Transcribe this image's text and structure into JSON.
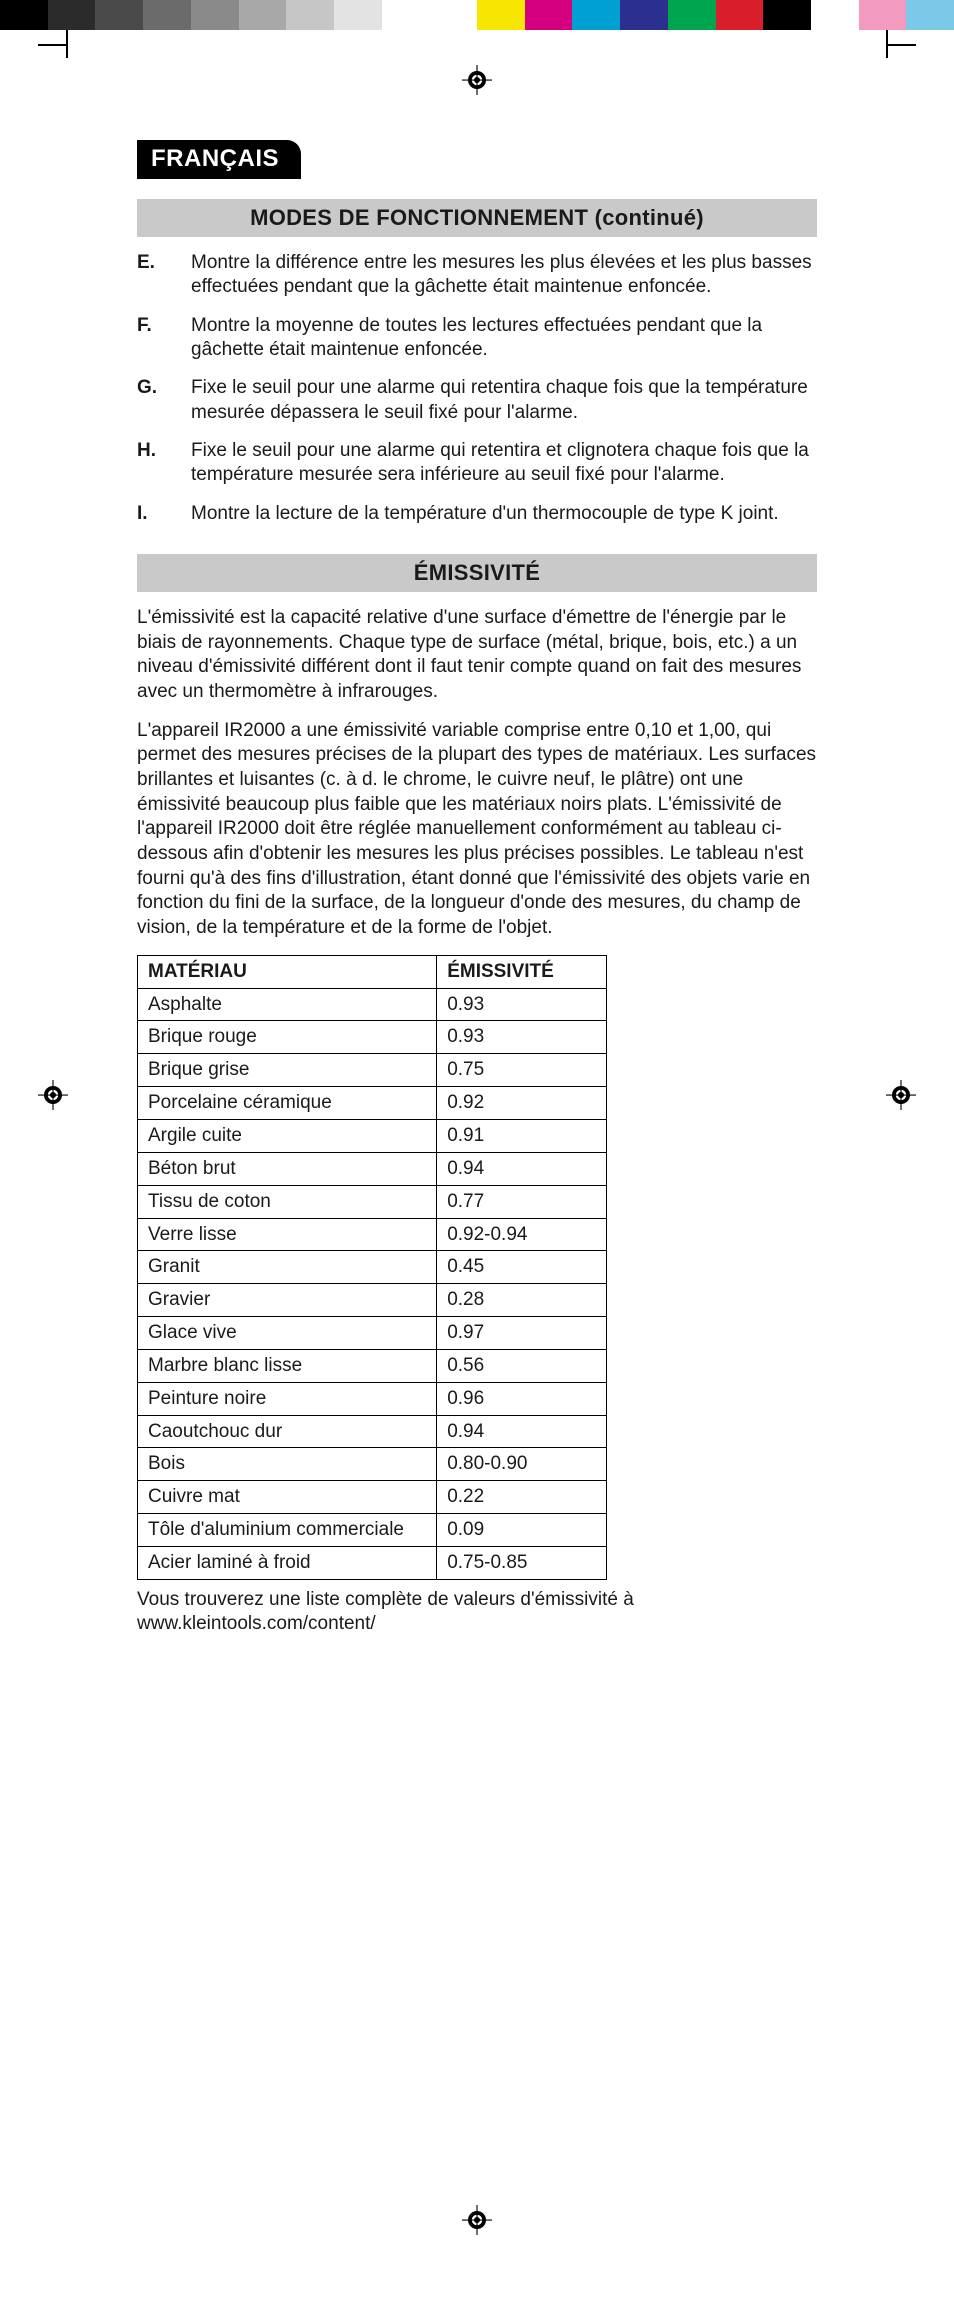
{
  "colorbar_colors": [
    "#000000",
    "#2b2b2b",
    "#4a4a4a",
    "#6b6b6b",
    "#8a8a8a",
    "#a8a8a8",
    "#c6c6c6",
    "#e3e3e3",
    "#ffffff",
    "#ffffff",
    "#f7e600",
    "#d4007f",
    "#00a0d2",
    "#2b2f8f",
    "#00a54f",
    "#d81e2a",
    "#000000",
    "#ffffff",
    "#f29ac0",
    "#7cc8e8"
  ],
  "lang_tab": "FRANÇAIS",
  "section_modes_title": "MODES DE FONCTIONNEMENT (continué)",
  "modes": [
    {
      "letter": "E.",
      "text": "Montre la différence entre les mesures les plus élevées et les plus basses effectuées pendant que la gâchette était maintenue enfoncée."
    },
    {
      "letter": "F.",
      "text": "Montre la moyenne de toutes les lectures effectuées pendant que la gâchette était maintenue enfoncée."
    },
    {
      "letter": "G.",
      "text": "Fixe le seuil pour une alarme qui retentira chaque fois que la température mesurée dépassera le seuil fixé pour l'alarme."
    },
    {
      "letter": "H.",
      "text": "Fixe le seuil pour une alarme qui retentira et clignotera chaque fois que la température mesurée sera inférieure au seuil fixé pour l'alarme."
    },
    {
      "letter": "I.",
      "text": "Montre la lecture de la température d'un thermocouple de type K joint."
    }
  ],
  "section_emis_title": "ÉMISSIVITÉ",
  "emis_para1": "L'émissivité est la capacité relative d'une surface d'émettre de l'énergie par le biais de rayonnements. Chaque type de surface (métal, brique, bois, etc.) a un niveau d'émissivité différent dont il faut tenir compte quand on fait des mesures avec un thermomètre à infrarouges.",
  "emis_para2": "L'appareil IR2000 a une émissivité variable comprise entre 0,10 et 1,00, qui permet des mesures précises de la plupart des types de matériaux. Les surfaces brillantes et luisantes (c. à d. le chrome, le cuivre neuf, le plâtre) ont une émissivité beaucoup plus faible que les matériaux noirs plats. L'émissivité de l'appareil IR2000 doit être réglée manuellement conformément au tableau ci-dessous afin d'obtenir les mesures les plus précises possibles. Le tableau n'est fourni qu'à des fins d'illustration, étant donné que l'émissivité des objets varie en fonction du fini de la surface, de la longueur d'onde des mesures, du champ de vision, de la température et de la forme de l'objet.",
  "emis_table": {
    "header_material": "MATÉRIAU",
    "header_emissivity": "ÉMISSIVITÉ",
    "rows": [
      {
        "material": "Asphalte",
        "emissivity": "0.93"
      },
      {
        "material": "Brique rouge",
        "emissivity": "0.93"
      },
      {
        "material": "Brique grise",
        "emissivity": "0.75"
      },
      {
        "material": "Porcelaine céramique",
        "emissivity": "0.92"
      },
      {
        "material": "Argile cuite",
        "emissivity": "0.91"
      },
      {
        "material": "Béton brut",
        "emissivity": "0.94"
      },
      {
        "material": "Tissu de coton",
        "emissivity": "0.77"
      },
      {
        "material": "Verre lisse",
        "emissivity": "0.92-0.94"
      },
      {
        "material": "Granit",
        "emissivity": "0.45"
      },
      {
        "material": "Gravier",
        "emissivity": "0.28"
      },
      {
        "material": "Glace vive",
        "emissivity": "0.97"
      },
      {
        "material": "Marbre blanc lisse",
        "emissivity": "0.56"
      },
      {
        "material": "Peinture noire",
        "emissivity": "0.96"
      },
      {
        "material": "Caoutchouc dur",
        "emissivity": "0.94"
      },
      {
        "material": "Bois",
        "emissivity": "0.80-0.90"
      },
      {
        "material": "Cuivre mat",
        "emissivity": "0.22"
      },
      {
        "material": "Tôle d'aluminium commerciale",
        "emissivity": "0.09"
      },
      {
        "material": "Acier laminé à froid",
        "emissivity": "0.75-0.85"
      }
    ]
  },
  "table_note": "Vous trouverez une liste complète de valeurs d'émissivité à www.kleintools.com/content/"
}
